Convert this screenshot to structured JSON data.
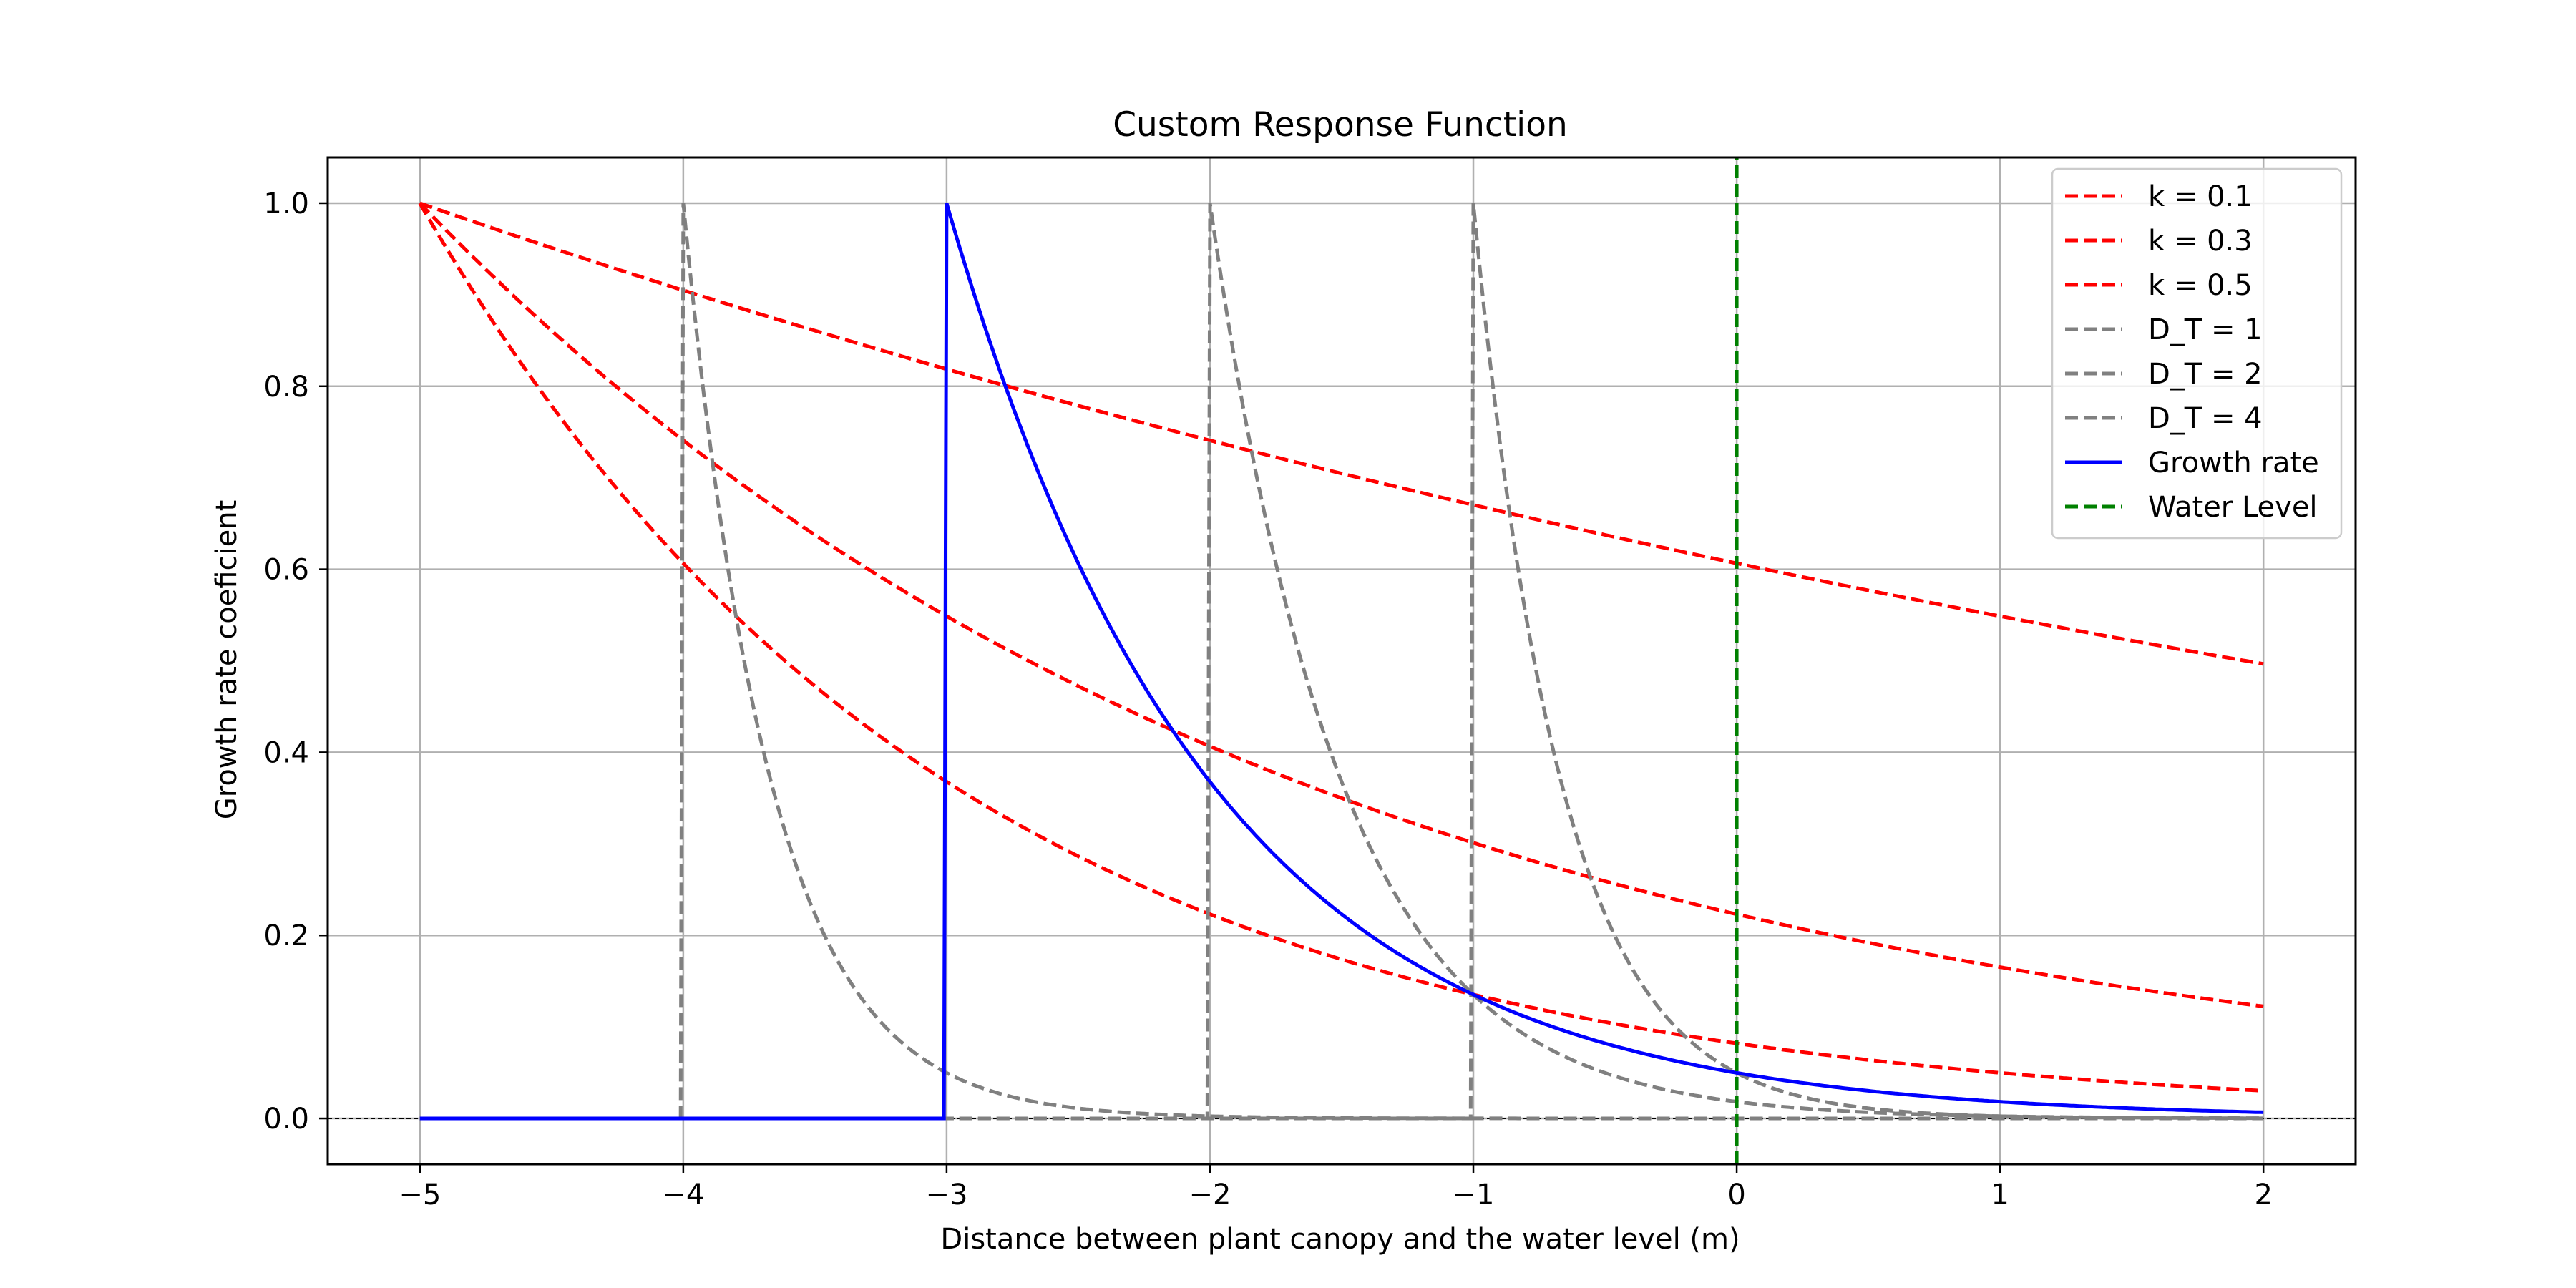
{
  "chart_data": {
    "type": "line",
    "title": "Custom Response Function",
    "xlabel": "Distance between plant canopy and the water level (m)",
    "ylabel": "Growth rate coeficient",
    "xlim": [
      -5.35,
      2.35
    ],
    "ylim": [
      -0.05,
      1.05
    ],
    "xticks": [
      "−5",
      "−4",
      "−3",
      "−2",
      "−1",
      "0",
      "1",
      "2"
    ],
    "xtick_values": [
      -5,
      -4,
      -3,
      -2,
      -1,
      0,
      1,
      2
    ],
    "yticks": [
      "0.0",
      "0.2",
      "0.4",
      "0.6",
      "0.8",
      "1.0"
    ],
    "ytick_values": [
      0,
      0.2,
      0.4,
      0.6,
      0.8,
      1.0
    ],
    "grid": true,
    "legend_position": "top-right",
    "series": [
      {
        "name": "k = 0.1",
        "color": "#ff0000",
        "style": "dashed",
        "kind": "decay",
        "start": -5,
        "k": 0.1,
        "x": [
          -5,
          -4,
          -3,
          -2,
          -1,
          0,
          1,
          2
        ],
        "y": [
          1.0,
          0.905,
          0.819,
          0.741,
          0.67,
          0.607,
          0.549,
          0.497
        ]
      },
      {
        "name": "k = 0.3",
        "color": "#ff0000",
        "style": "dashed",
        "kind": "decay",
        "start": -5,
        "k": 0.3,
        "x": [
          -5,
          -4,
          -3,
          -2,
          -1,
          0,
          1,
          2
        ],
        "y": [
          1.0,
          0.741,
          0.549,
          0.407,
          0.301,
          0.223,
          0.165,
          0.122
        ]
      },
      {
        "name": "k = 0.5",
        "color": "#ff0000",
        "style": "dashed",
        "kind": "decay",
        "start": -5,
        "k": 0.5,
        "x": [
          -5,
          -4,
          -3,
          -2,
          -1,
          0,
          1,
          2
        ],
        "y": [
          1.0,
          0.607,
          0.368,
          0.223,
          0.135,
          0.082,
          0.05,
          0.03
        ]
      },
      {
        "name": "D_T = 1",
        "color": "#808080",
        "style": "dashed",
        "kind": "decay",
        "start": -1,
        "k": 3.0,
        "x": [
          -1,
          -0.5,
          0,
          1,
          2
        ],
        "y": [
          0.97,
          0.22,
          0.05,
          0.0,
          0.0
        ]
      },
      {
        "name": "D_T = 2",
        "color": "#808080",
        "style": "dashed",
        "kind": "decay",
        "start": -2,
        "k": 2.0,
        "x": [
          -2,
          -1.5,
          -1,
          0,
          2
        ],
        "y": [
          1.0,
          0.37,
          0.135,
          0.02,
          0.0
        ]
      },
      {
        "name": "D_T = 4",
        "color": "#808080",
        "style": "dashed",
        "kind": "decay",
        "start": -4,
        "k": 3.0,
        "x": [
          -4,
          -3.5,
          -3,
          -2,
          2
        ],
        "y": [
          0.97,
          0.22,
          0.05,
          0.0,
          0.0
        ]
      },
      {
        "name": "Growth rate",
        "color": "#0000ff",
        "style": "solid",
        "kind": "decay",
        "start": -3,
        "k": 1.0,
        "x": [
          -3,
          -2,
          -1,
          0,
          1,
          2
        ],
        "y": [
          1.0,
          0.368,
          0.135,
          0.05,
          0.018,
          0.007
        ]
      },
      {
        "name": "Water Level",
        "color": "#008000",
        "style": "dashed",
        "kind": "vline",
        "x": [
          0,
          0
        ],
        "y": [
          -0.05,
          1.05
        ]
      }
    ]
  }
}
